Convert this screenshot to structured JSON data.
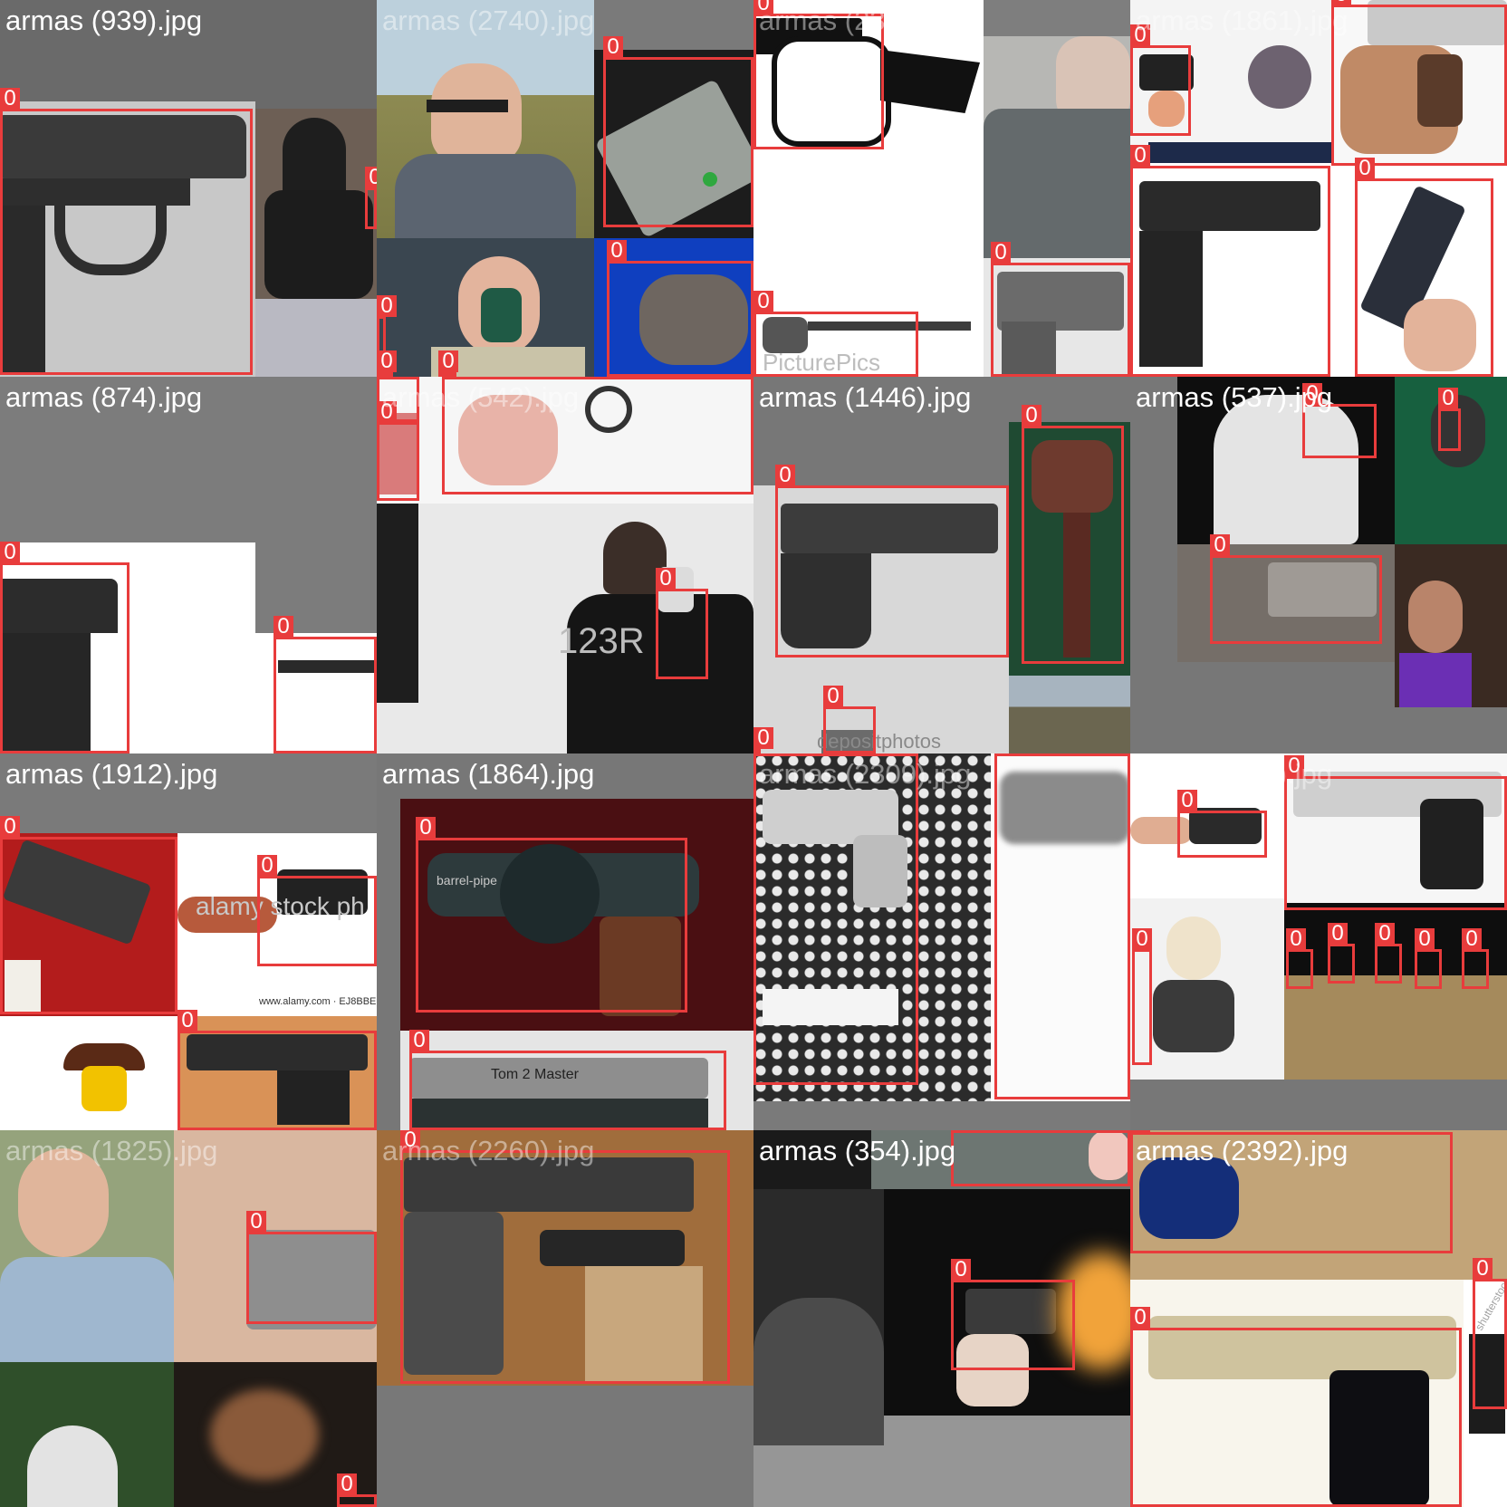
{
  "image": {
    "box_color": "#e83c3c",
    "title_color": "#ffffff",
    "tiles": [
      {
        "id": "t00",
        "title": "armas (939).jpg",
        "boxes": [
          "0",
          "0"
        ]
      },
      {
        "id": "t01",
        "title": "armas (2740).jpg",
        "boxes": [
          "0",
          "0",
          "0",
          "0",
          "0"
        ]
      },
      {
        "id": "t02",
        "title": "armas (2320).jpg",
        "boxes": [
          "0",
          "0",
          "0"
        ]
      },
      {
        "id": "t03",
        "title": "armas (1861).jpg",
        "boxes": [
          "0",
          "0",
          "0",
          "0"
        ]
      },
      {
        "id": "t10",
        "title": "armas (874).jpg",
        "boxes": [
          "0",
          "0"
        ]
      },
      {
        "id": "t11",
        "title": "armas (542).jpg",
        "boxes": [
          "0",
          "0",
          "0",
          "0"
        ]
      },
      {
        "id": "t12",
        "title": "armas (1446).jpg",
        "boxes": [
          "0",
          "0",
          "0",
          "0"
        ]
      },
      {
        "id": "t13",
        "title": "armas (537).jpg",
        "boxes": [
          "0",
          "0",
          "0"
        ]
      },
      {
        "id": "t20",
        "title": "armas (1912).jpg",
        "boxes": [
          "0",
          "0",
          "0"
        ]
      },
      {
        "id": "t21",
        "title": "armas (1864).jpg",
        "boxes": [
          "0",
          "0"
        ]
      },
      {
        "id": "t22",
        "title": "armas (2309).jpg",
        "boxes": [
          "0",
          "0"
        ]
      },
      {
        "id": "t23",
        "title": "armas (534).jpg",
        "boxes": [
          "0",
          "0",
          "0",
          "0",
          "0",
          "0",
          "0",
          "0"
        ]
      },
      {
        "id": "t30",
        "title": "armas (1825).jpg",
        "boxes": [
          "0",
          "0"
        ]
      },
      {
        "id": "t31",
        "title": "armas (2260).jpg",
        "boxes": [
          "0"
        ]
      },
      {
        "id": "t32",
        "title": "armas (354).jpg",
        "boxes": [
          "0",
          "0"
        ]
      },
      {
        "id": "t33",
        "title": "armas (2392).jpg",
        "boxes": [
          "0",
          "0",
          "0"
        ]
      }
    ],
    "watermarks": {
      "alamy": "alamy stock ph",
      "alamy_code": "www.alamy.com · EJ8BBE",
      "depositphotos": "depositphotos",
      "picturepics": "PicturePics",
      "stock123": "123R",
      "shutterstock": "shutterstock"
    },
    "engravings": {
      "revolver": "barrel-pipe",
      "slide": "Tom 2 Master"
    }
  }
}
